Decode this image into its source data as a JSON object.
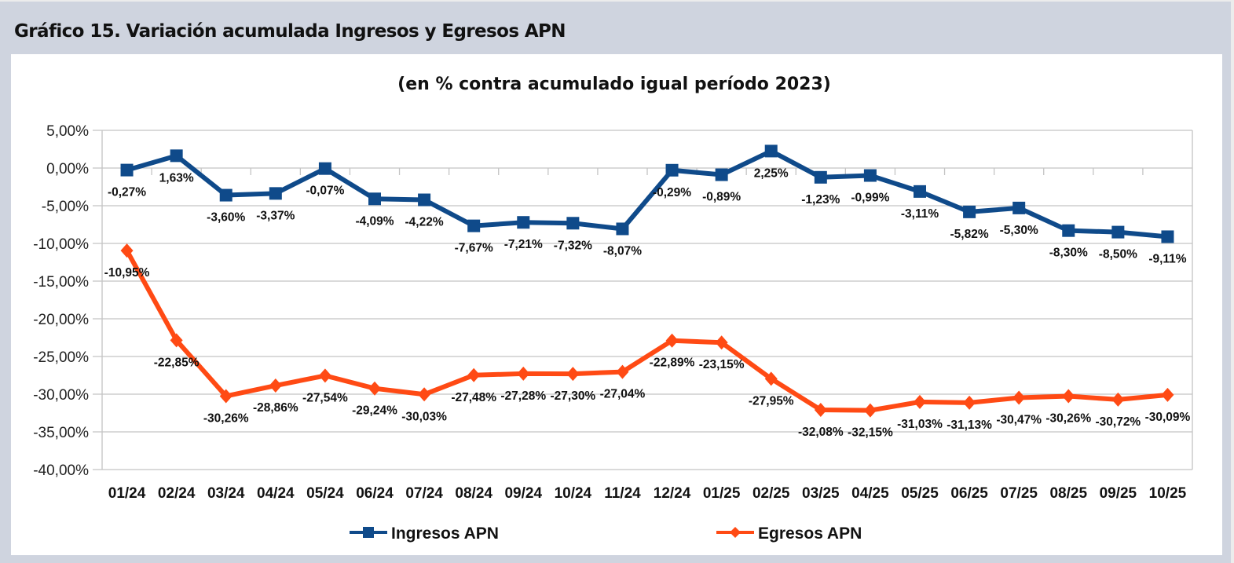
{
  "heading": "Gráfico 15. Variación acumulada Ingresos y Egresos APN",
  "chart_data": {
    "type": "line",
    "title": "(en % contra acumulado igual período 2023)",
    "xlabel": "",
    "ylabel": "",
    "ylim": [
      -40,
      5
    ],
    "yticks": [
      5,
      0,
      -5,
      -10,
      -15,
      -20,
      -25,
      -30,
      -35,
      -40
    ],
    "ytick_labels": [
      "5,00%",
      "0,00%",
      "-5,00%",
      "-10,00%",
      "-15,00%",
      "-20,00%",
      "-25,00%",
      "-30,00%",
      "-35,00%",
      "-40,00%"
    ],
    "grid": true,
    "legend_position": "bottom",
    "categories": [
      "01/24",
      "02/24",
      "03/24",
      "04/24",
      "05/24",
      "06/24",
      "07/24",
      "08/24",
      "09/24",
      "10/24",
      "11/24",
      "12/24",
      "01/25",
      "02/25",
      "03/25",
      "04/25",
      "05/25",
      "06/25",
      "07/25",
      "08/25",
      "09/25",
      "10/25"
    ],
    "series": [
      {
        "name": "Ingresos APN",
        "color": "#0f4a8a",
        "marker": "square",
        "values": [
          -0.27,
          1.63,
          -3.6,
          -3.37,
          -0.07,
          -4.09,
          -4.22,
          -7.67,
          -7.21,
          -7.32,
          -8.07,
          -0.29,
          -0.89,
          2.25,
          -1.23,
          -0.99,
          -3.11,
          -5.82,
          -5.3,
          -8.3,
          -8.5,
          -9.11
        ],
        "labels": [
          "-0,27%",
          "1,63%",
          "-3,60%",
          "-3,37%",
          "-0,07%",
          "-4,09%",
          "-4,22%",
          "-7,67%",
          "-7,21%",
          "-7,32%",
          "-8,07%",
          "-0,29%",
          "-0,89%",
          "2,25%",
          "-1,23%",
          "-0,99%",
          "-3,11%",
          "-5,82%",
          "-5,30%",
          "-8,30%",
          "-8,50%",
          "-9,11%"
        ]
      },
      {
        "name": "Egresos APN",
        "color": "#ff4a14",
        "marker": "diamond",
        "values": [
          -10.95,
          -22.85,
          -30.26,
          -28.86,
          -27.54,
          -29.24,
          -30.03,
          -27.48,
          -27.28,
          -27.3,
          -27.04,
          -22.89,
          -23.15,
          -27.95,
          -32.08,
          -32.15,
          -31.03,
          -31.13,
          -30.47,
          -30.26,
          -30.72,
          -30.09
        ],
        "labels": [
          "-10,95%",
          "-22,85%",
          "-30,26%",
          "-28,86%",
          "-27,54%",
          "-29,24%",
          "-30,03%",
          "-27,48%",
          "-27,28%",
          "-27,30%",
          "-27,04%",
          "-22,89%",
          "-23,15%",
          "-27,95%",
          "-32,08%",
          "-32,15%",
          "-31,03%",
          "-31,13%",
          "-30,47%",
          "-30,26%",
          "-30,72%",
          "-30,09%"
        ]
      }
    ]
  }
}
